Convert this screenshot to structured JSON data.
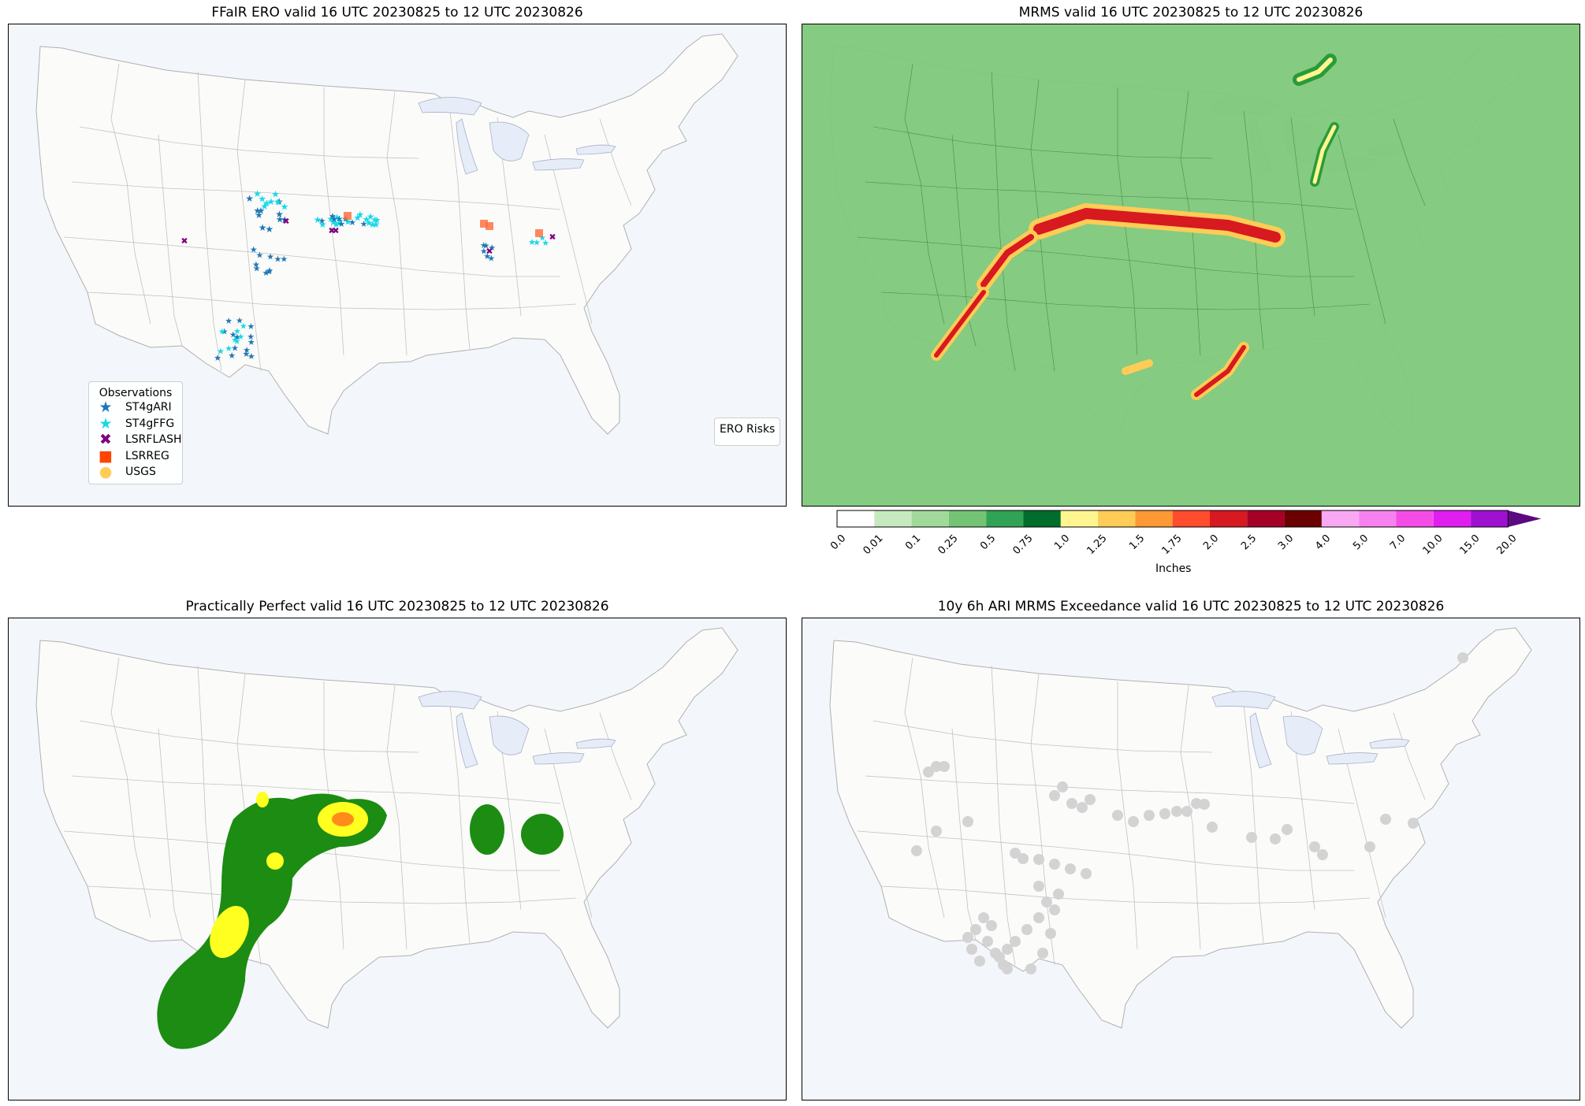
{
  "panels": {
    "ero": {
      "title": "FFaIR ERO valid 16 UTC 20230825 to 12 UTC 20230826"
    },
    "mrms": {
      "title": "MRMS valid 16 UTC 20230825 to 12 UTC 20230826"
    },
    "pp": {
      "title": "Practically Perfect valid 16 UTC 20230825 to 12 UTC 20230826"
    },
    "ari": {
      "title": "10y 6h ARI MRMS Exceedance valid 16 UTC 20230825 to 12 UTC 20230826"
    }
  },
  "legend": {
    "title": "Observations",
    "items": [
      {
        "label": "ST4gARI",
        "symbol": "★",
        "color": "#1f77b4"
      },
      {
        "label": "ST4gFFG",
        "symbol": "★",
        "color": "#17d9e6"
      },
      {
        "label": "LSRFLASH",
        "symbol": "✖",
        "color": "#800080"
      },
      {
        "label": "LSRREG",
        "symbol": "■",
        "color": "#ff4500"
      },
      {
        "label": "USGS",
        "symbol": "●",
        "color": "#ffcc55"
      }
    ]
  },
  "ero_legend": {
    "title": "ERO Risks"
  },
  "colorbar": {
    "label": "Inches",
    "ticks": [
      "0.0",
      "0.01",
      "0.1",
      "0.25",
      "0.5",
      "0.75",
      "1.0",
      "1.25",
      "1.5",
      "1.75",
      "2.0",
      "2.5",
      "3.0",
      "4.0",
      "5.0",
      "7.0",
      "10.0",
      "15.0",
      "20.0"
    ],
    "colors": [
      "#ffffff",
      "#c7e9c0",
      "#a1d99b",
      "#74c476",
      "#31a354",
      "#006d2c",
      "#fff68f",
      "#ffcc55",
      "#ff9933",
      "#ff4d2e",
      "#d71920",
      "#a50026",
      "#6b0000",
      "#f9a8f3",
      "#f781ee",
      "#f54ce8",
      "#e01ef0",
      "#a010d0"
    ],
    "extend_color": "#5b0a80"
  },
  "colors": {
    "land": "#fbfbfa",
    "ocean": "#f3f6fb",
    "border": "#9a9a9a",
    "mrms_base": "#7ec87a",
    "pp_green": "#1c8c12",
    "pp_yellow": "#ffff20",
    "pp_orange": "#ff8c1a",
    "ari_gray": "#d3d3d3"
  }
}
